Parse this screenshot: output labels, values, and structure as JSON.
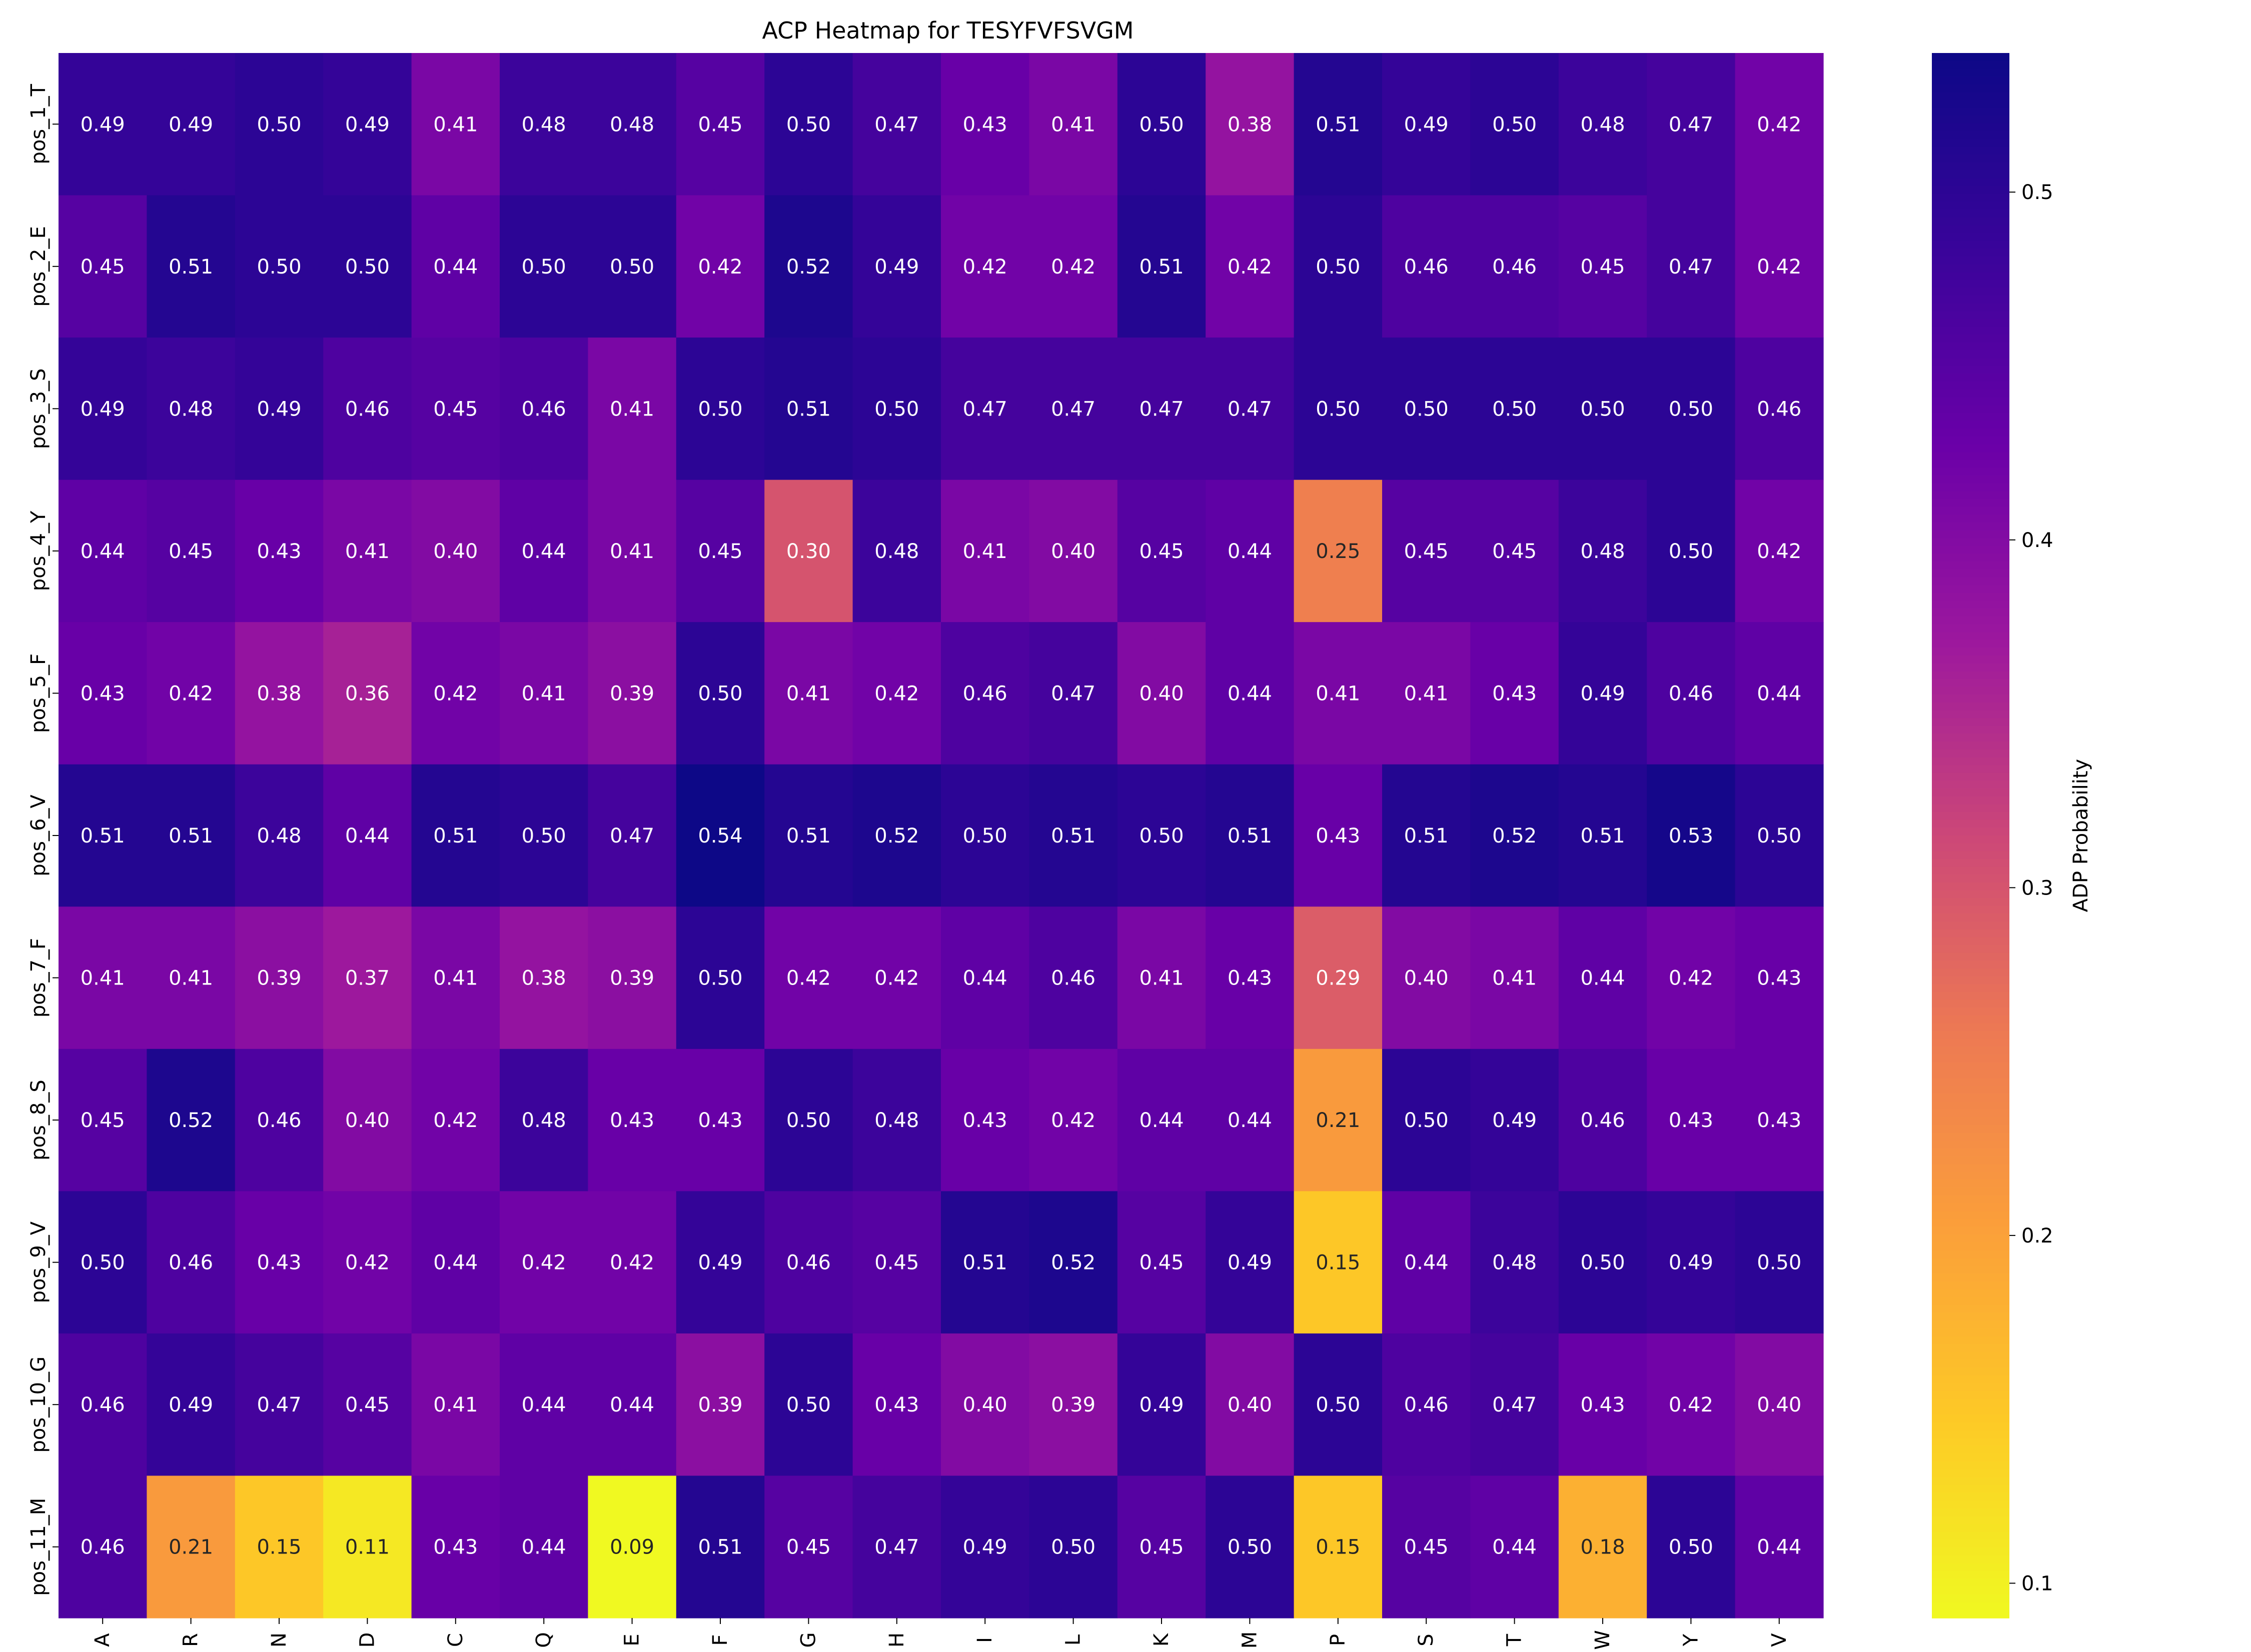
{
  "chart_data": {
    "type": "heatmap",
    "title": "ACP Heatmap for TESYFVFSVGM",
    "xlabel": "",
    "ylabel": "",
    "x_categories": [
      "A",
      "R",
      "N",
      "D",
      "C",
      "Q",
      "E",
      "F",
      "G",
      "H",
      "I",
      "L",
      "K",
      "M",
      "P",
      "S",
      "T",
      "W",
      "Y",
      "V"
    ],
    "y_categories": [
      "pos_1_T",
      "pos_2_E",
      "pos_3_S",
      "pos_4_Y",
      "pos_5_F",
      "pos_6_V",
      "pos_7_F",
      "pos_8_S",
      "pos_9_V",
      "pos_10_G",
      "pos_11_M"
    ],
    "values": [
      [
        0.49,
        0.49,
        0.5,
        0.49,
        0.41,
        0.48,
        0.48,
        0.45,
        0.5,
        0.47,
        0.43,
        0.41,
        0.5,
        0.38,
        0.51,
        0.49,
        0.5,
        0.48,
        0.47,
        0.42
      ],
      [
        0.45,
        0.51,
        0.5,
        0.5,
        0.44,
        0.5,
        0.5,
        0.42,
        0.52,
        0.49,
        0.42,
        0.42,
        0.51,
        0.42,
        0.5,
        0.46,
        0.46,
        0.45,
        0.47,
        0.42
      ],
      [
        0.49,
        0.48,
        0.49,
        0.46,
        0.45,
        0.46,
        0.41,
        0.5,
        0.51,
        0.5,
        0.47,
        0.47,
        0.47,
        0.47,
        0.5,
        0.5,
        0.5,
        0.5,
        0.5,
        0.46
      ],
      [
        0.44,
        0.45,
        0.43,
        0.41,
        0.4,
        0.44,
        0.41,
        0.45,
        0.3,
        0.48,
        0.41,
        0.4,
        0.45,
        0.44,
        0.25,
        0.45,
        0.45,
        0.48,
        0.5,
        0.42
      ],
      [
        0.43,
        0.42,
        0.38,
        0.36,
        0.42,
        0.41,
        0.39,
        0.5,
        0.41,
        0.42,
        0.46,
        0.47,
        0.4,
        0.44,
        0.41,
        0.41,
        0.43,
        0.49,
        0.46,
        0.44
      ],
      [
        0.51,
        0.51,
        0.48,
        0.44,
        0.51,
        0.5,
        0.47,
        0.54,
        0.51,
        0.52,
        0.5,
        0.51,
        0.5,
        0.51,
        0.43,
        0.51,
        0.52,
        0.51,
        0.53,
        0.5
      ],
      [
        0.41,
        0.41,
        0.39,
        0.37,
        0.41,
        0.38,
        0.39,
        0.5,
        0.42,
        0.42,
        0.44,
        0.46,
        0.41,
        0.43,
        0.29,
        0.4,
        0.41,
        0.44,
        0.42,
        0.43
      ],
      [
        0.45,
        0.52,
        0.46,
        0.4,
        0.42,
        0.48,
        0.43,
        0.43,
        0.5,
        0.48,
        0.43,
        0.42,
        0.44,
        0.44,
        0.21,
        0.5,
        0.49,
        0.46,
        0.43,
        0.43
      ],
      [
        0.5,
        0.46,
        0.43,
        0.42,
        0.44,
        0.42,
        0.42,
        0.49,
        0.46,
        0.45,
        0.51,
        0.52,
        0.45,
        0.49,
        0.15,
        0.44,
        0.48,
        0.5,
        0.49,
        0.5
      ],
      [
        0.46,
        0.49,
        0.47,
        0.45,
        0.41,
        0.44,
        0.44,
        0.39,
        0.5,
        0.43,
        0.4,
        0.39,
        0.49,
        0.4,
        0.5,
        0.46,
        0.47,
        0.43,
        0.42,
        0.4
      ],
      [
        0.46,
        0.21,
        0.15,
        0.11,
        0.43,
        0.44,
        0.09,
        0.51,
        0.45,
        0.47,
        0.49,
        0.5,
        0.45,
        0.5,
        0.15,
        0.45,
        0.44,
        0.18,
        0.5,
        0.44
      ]
    ],
    "colormap": "plasma_r",
    "vmin": 0.09,
    "vmax": 0.54,
    "colorbar": {
      "label": "ADP Probability",
      "ticks": [
        0.1,
        0.2,
        0.3,
        0.4,
        0.5
      ],
      "tick_labels": [
        "0.1",
        "0.2",
        "0.3",
        "0.4",
        "0.5"
      ]
    },
    "annotations": true,
    "grid": false,
    "legend": "colorbar-right"
  }
}
